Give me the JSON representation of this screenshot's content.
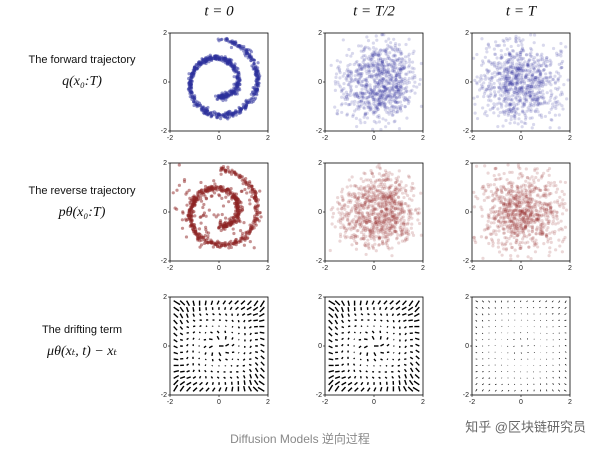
{
  "columns": [
    "t = 0",
    "t = T/2",
    "t = T"
  ],
  "rows": [
    {
      "label": "The forward trajectory",
      "formula": "q(x₀:T)"
    },
    {
      "label": "The reverse trajectory",
      "formula": "pθ(x₀:T)"
    },
    {
      "label": "The drifting term",
      "formula": "μθ(xₜ, t) − xₜ"
    }
  ],
  "ticks": [
    -2,
    0,
    2
  ],
  "caption": "Diffusion Models 逆向过程",
  "watermark": "知乎 @区块链研究员"
}
